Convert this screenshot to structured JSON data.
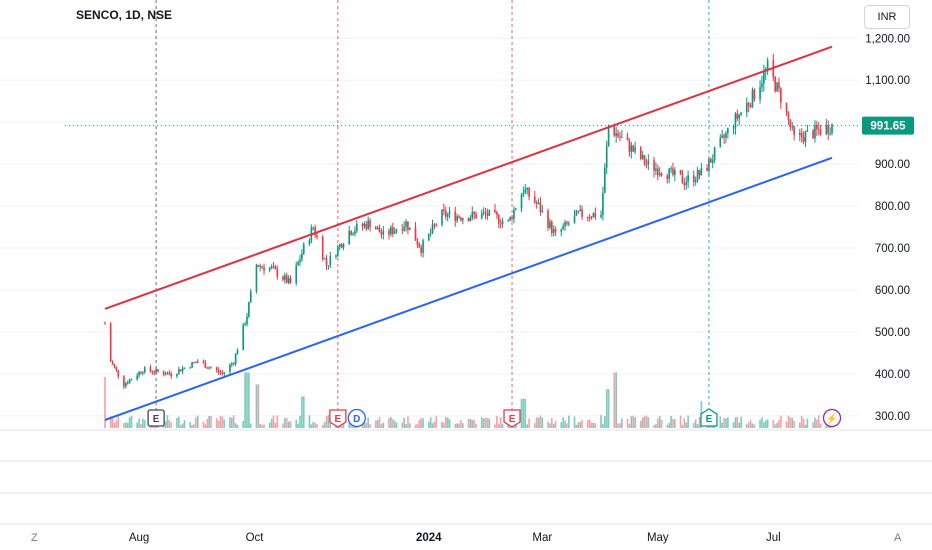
{
  "header": {
    "symbol_title": "SENCO, 1D, NSE",
    "currency_button": "INR"
  },
  "corners": {
    "left": "Z",
    "right": "A"
  },
  "colors": {
    "up": "#089981",
    "down": "#f23645",
    "vol_up": "#7fcbbd",
    "vol_down": "#f5a3aa",
    "upper_channel": "#e03140",
    "lower_channel": "#2962ff",
    "price_tag": "#089981"
  },
  "chart_data": {
    "type": "candlestick",
    "title": "SENCO, 1D, NSE",
    "ylabel": "",
    "y_ticks": [
      300,
      400,
      500,
      600,
      700,
      800,
      900,
      1000,
      1100,
      1200
    ],
    "y_tick_labels": [
      "300.00",
      "400.00",
      "500.00",
      "600.00",
      "700.00",
      "800.00",
      "900.00",
      "",
      "1,100.00",
      "1,200.00"
    ],
    "ylim": [
      290,
      1215
    ],
    "x_labels": [
      "Aug",
      "Oct",
      "2024",
      "Mar",
      "May",
      "Jul"
    ],
    "x_range": [
      "2023-07-14",
      "2024-08-01"
    ],
    "last_price": 991.65,
    "last_price_label": "991.65",
    "price_path": [
      [
        "2023-07-14",
        520
      ],
      [
        "2023-07-17",
        430
      ],
      [
        "2023-07-24",
        375
      ],
      [
        "2023-08-03",
        410
      ],
      [
        "2023-08-18",
        400
      ],
      [
        "2023-09-01",
        430
      ],
      [
        "2023-09-14",
        400
      ],
      [
        "2023-09-20",
        430
      ],
      [
        "2023-09-27",
        540
      ],
      [
        "2023-10-02",
        660
      ],
      [
        "2023-10-10",
        650
      ],
      [
        "2023-10-20",
        615
      ],
      [
        "2023-10-27",
        700
      ],
      [
        "2023-11-01",
        750
      ],
      [
        "2023-11-08",
        660
      ],
      [
        "2023-11-20",
        740
      ],
      [
        "2023-12-01",
        760
      ],
      [
        "2023-12-08",
        730
      ],
      [
        "2023-12-20",
        760
      ],
      [
        "2023-12-28",
        700
      ],
      [
        "2024-01-08",
        780
      ],
      [
        "2024-01-20",
        775
      ],
      [
        "2024-02-01",
        780
      ],
      [
        "2024-02-12",
        760
      ],
      [
        "2024-02-20",
        840
      ],
      [
        "2024-02-28",
        800
      ],
      [
        "2024-03-08",
        730
      ],
      [
        "2024-03-20",
        780
      ],
      [
        "2024-04-01",
        780
      ],
      [
        "2024-04-05",
        990
      ],
      [
        "2024-04-12",
        960
      ],
      [
        "2024-04-25",
        900
      ],
      [
        "2024-05-06",
        880
      ],
      [
        "2024-05-15",
        860
      ],
      [
        "2024-05-25",
        880
      ],
      [
        "2024-06-10",
        1000
      ],
      [
        "2024-06-20",
        1060
      ],
      [
        "2024-06-28",
        1130
      ],
      [
        "2024-07-05",
        1060
      ],
      [
        "2024-07-12",
        960
      ],
      [
        "2024-07-22",
        975
      ],
      [
        "2024-08-01",
        991.65
      ]
    ],
    "volume_spikes": [
      [
        "2023-07-14",
        0.85
      ],
      [
        "2023-09-27",
        0.95
      ],
      [
        "2023-10-02",
        0.7
      ],
      [
        "2023-10-27",
        0.45
      ],
      [
        "2024-02-20",
        0.4
      ],
      [
        "2024-04-05",
        0.6
      ],
      [
        "2024-04-08",
        0.95
      ],
      [
        "2024-05-25",
        0.35
      ]
    ],
    "channel": {
      "upper": {
        "name": "",
        "start": [
          "2023-07-14",
          555
        ],
        "end": [
          "2024-08-01",
          1180
        ]
      },
      "lower": {
        "name": "",
        "start": [
          "2023-07-14",
          290
        ],
        "end": [
          "2024-08-01",
          915
        ]
      }
    },
    "event_lines": [
      {
        "date": "2023-08-10",
        "color": "#434651"
      },
      {
        "date": "2023-11-14",
        "color": "#f23645"
      },
      {
        "date": "2024-02-14",
        "color": "#f23645"
      },
      {
        "date": "2024-05-28",
        "color": "#089981"
      }
    ],
    "events": [
      {
        "label": "E",
        "date": "2023-08-10",
        "kind": "earnings-neutral",
        "color": "#434651"
      },
      {
        "label": "E",
        "date": "2023-11-14",
        "kind": "earnings-miss",
        "color": "#f23645"
      },
      {
        "label": "D",
        "date": "2023-11-24",
        "kind": "dividend",
        "color": "#2962ff"
      },
      {
        "label": "E",
        "date": "2024-02-14",
        "kind": "earnings-miss",
        "color": "#f23645"
      },
      {
        "label": "E",
        "date": "2024-05-28",
        "kind": "earnings-beat",
        "color": "#089981"
      },
      {
        "label": "⚡",
        "date": "2024-08-01",
        "kind": "news-flash",
        "color": "#9c27b0"
      }
    ],
    "grid": true,
    "legend": "none"
  }
}
